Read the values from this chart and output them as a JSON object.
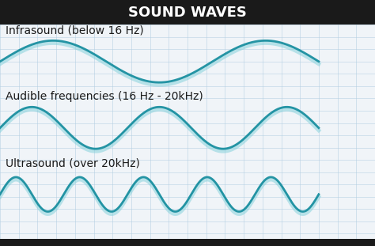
{
  "title": "SOUND WAVES",
  "title_color": "#ffffff",
  "title_bg_color": "#1a1a1a",
  "bg_color": "#f0f4f8",
  "grid_color": "#b0cce0",
  "wave_color_light": "#7ecfda",
  "wave_color_dark": "#1a8fa0",
  "labels": [
    "Infrasound (below 16 Hz)",
    "Audible frequencies (16 Hz - 20kHz)",
    "Ultrasound (over 20kHz)"
  ],
  "label_color": "#1a1a1a",
  "label_fontsize": 10,
  "frequencies": [
    1.5,
    2.5,
    5.0
  ],
  "amplitudes": [
    0.85,
    0.85,
    0.7
  ],
  "wave_linewidth": 2.0,
  "title_fontsize": 13
}
